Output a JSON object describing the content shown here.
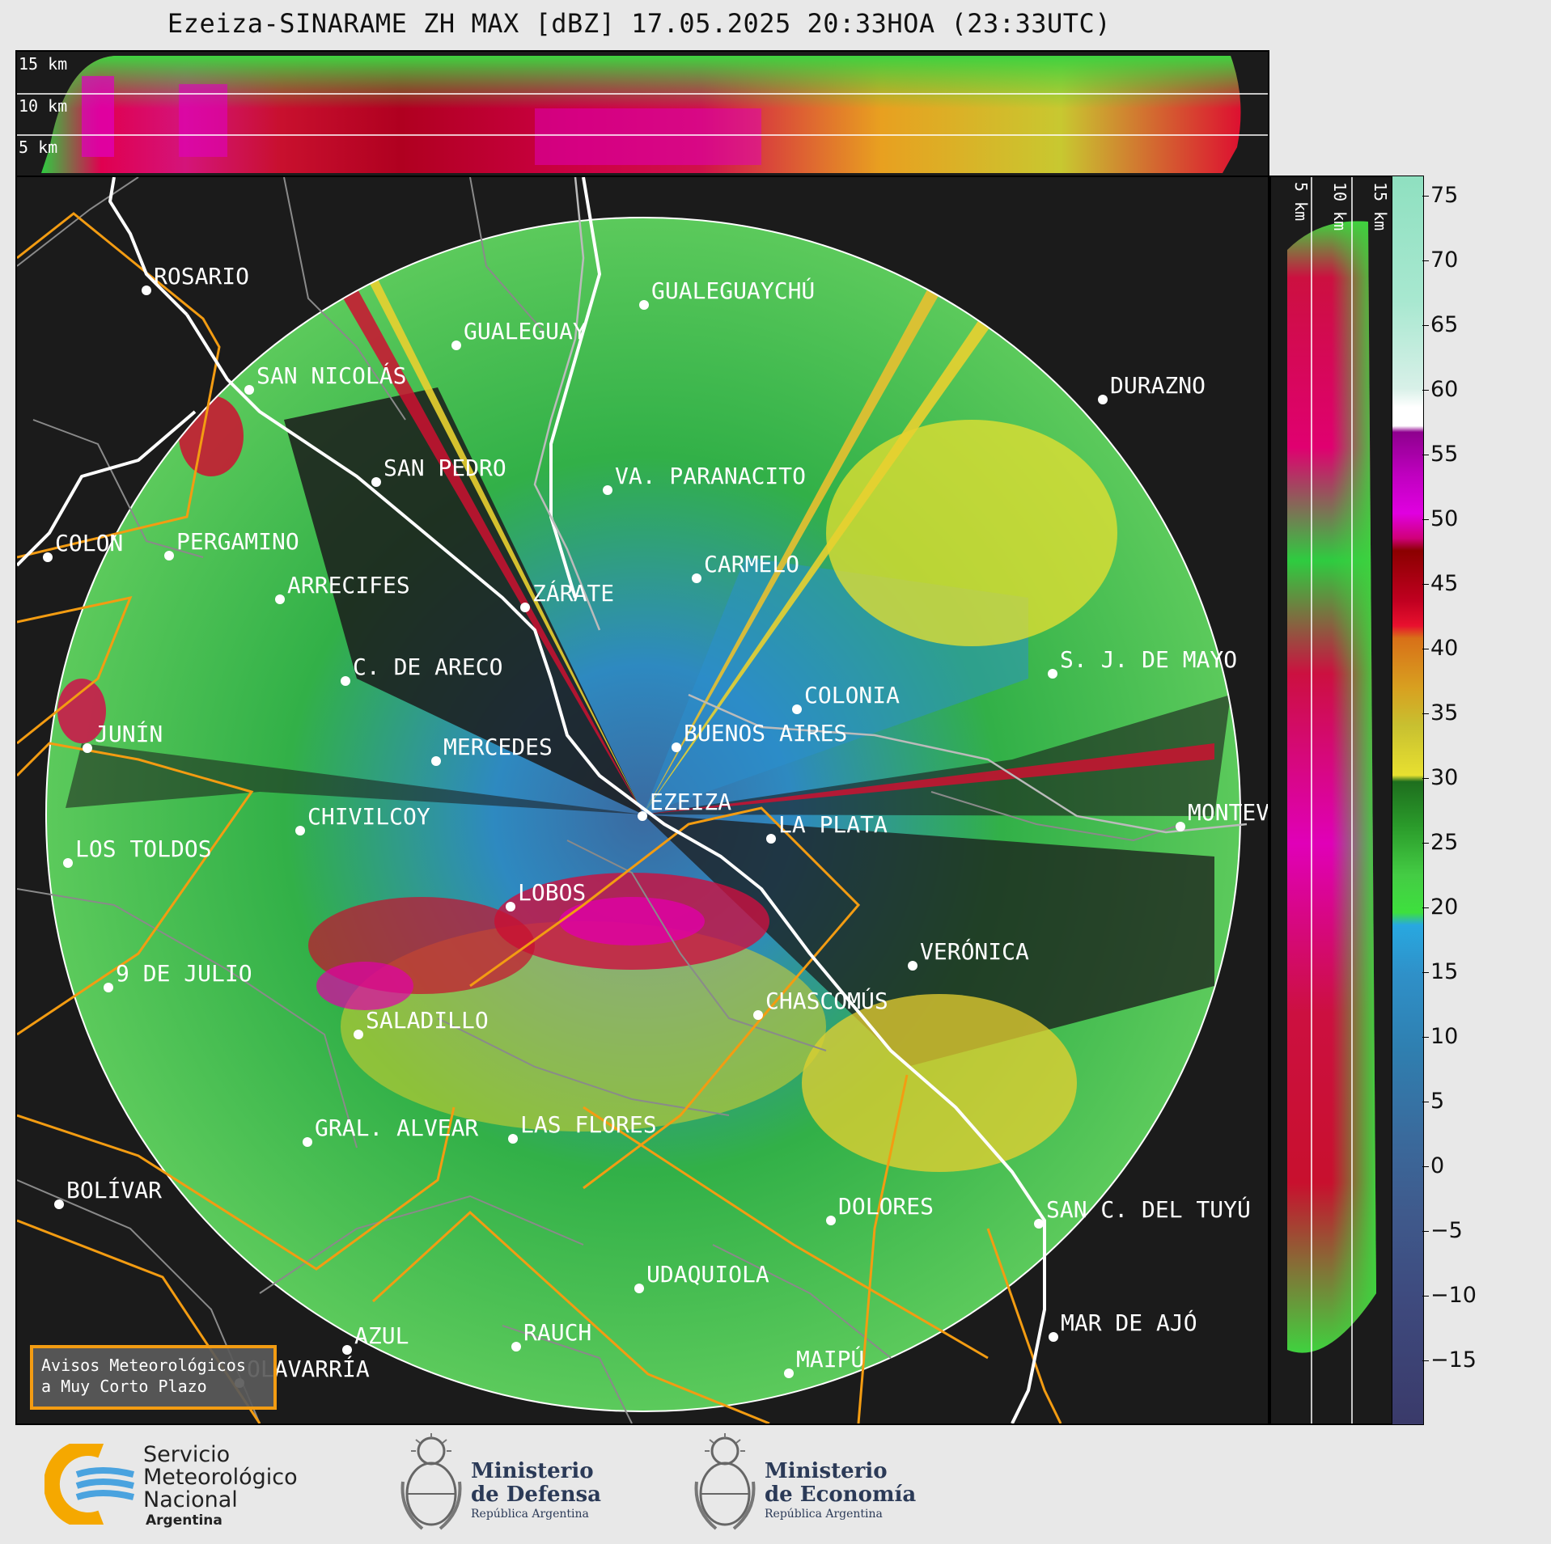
{
  "title": "Ezeiza-SINARAME ZH MAX [dBZ] 17.05.2025 20:33HOA (23:33UTC)",
  "height_labels": {
    "h15": "15 km",
    "h10": "10 km",
    "h5": "5 km"
  },
  "cities": [
    {
      "name": "ROSARIO"
    },
    {
      "name": "GUALEGUAYCHÚ"
    },
    {
      "name": "GUALEGUAY"
    },
    {
      "name": "SAN NICOLÁS"
    },
    {
      "name": "DURAZNO"
    },
    {
      "name": "SAN PEDRO"
    },
    {
      "name": "VA. PARANACITO"
    },
    {
      "name": "COLON"
    },
    {
      "name": "PERGAMINO"
    },
    {
      "name": "CARMELO"
    },
    {
      "name": "ARRECIFES"
    },
    {
      "name": "ZÁRATE"
    },
    {
      "name": "S. J. DE MAYO"
    },
    {
      "name": "C. DE ARECO"
    },
    {
      "name": "COLONIA"
    },
    {
      "name": "JUNÍN"
    },
    {
      "name": "BUENOS AIRES"
    },
    {
      "name": "MERCEDES"
    },
    {
      "name": "EZEIZA"
    },
    {
      "name": "MONTEV"
    },
    {
      "name": "CHIVILCOY"
    },
    {
      "name": "LA PLATA"
    },
    {
      "name": "LOS TOLDOS"
    },
    {
      "name": "LOBOS"
    },
    {
      "name": "VERÓNICA"
    },
    {
      "name": "9 DE JULIO"
    },
    {
      "name": "CHASCOMÚS"
    },
    {
      "name": "SALADILLO"
    },
    {
      "name": "GRAL. ALVEAR"
    },
    {
      "name": "LAS FLORES"
    },
    {
      "name": "BOLÍVAR"
    },
    {
      "name": "DOLORES"
    },
    {
      "name": "SAN C. DEL TUYÚ"
    },
    {
      "name": "UDAQUIOLA"
    },
    {
      "name": "RAUCH"
    },
    {
      "name": "MAR DE AJÓ"
    },
    {
      "name": "AZUL"
    },
    {
      "name": "OLAVARRÍA"
    },
    {
      "name": "MAIPÚ"
    }
  ],
  "colorbar": {
    "unit": "dBZ",
    "ticks": [
      "75",
      "70",
      "65",
      "60",
      "55",
      "50",
      "45",
      "40",
      "35",
      "30",
      "25",
      "20",
      "15",
      "10",
      "5",
      "0",
      "−5",
      "−10",
      "−15"
    ]
  },
  "warning_box": {
    "line1": "Avisos Meteorológicos",
    "line2": "a Muy Corto Plazo"
  },
  "logos": {
    "smn": {
      "line1": "Servicio",
      "line2": "Meteorológico",
      "line3": "Nacional",
      "line4": "Argentina"
    },
    "defensa": {
      "line1": "Ministerio",
      "line2": "de Defensa",
      "line3": "República Argentina"
    },
    "economia": {
      "line1": "Ministerio",
      "line2": "de Economía",
      "line3": "República Argentina"
    }
  },
  "colors": {
    "frame": "#1b1b1b",
    "coast": "#ffffff",
    "alert": "#f39c12",
    "ring": "#ffffff"
  }
}
